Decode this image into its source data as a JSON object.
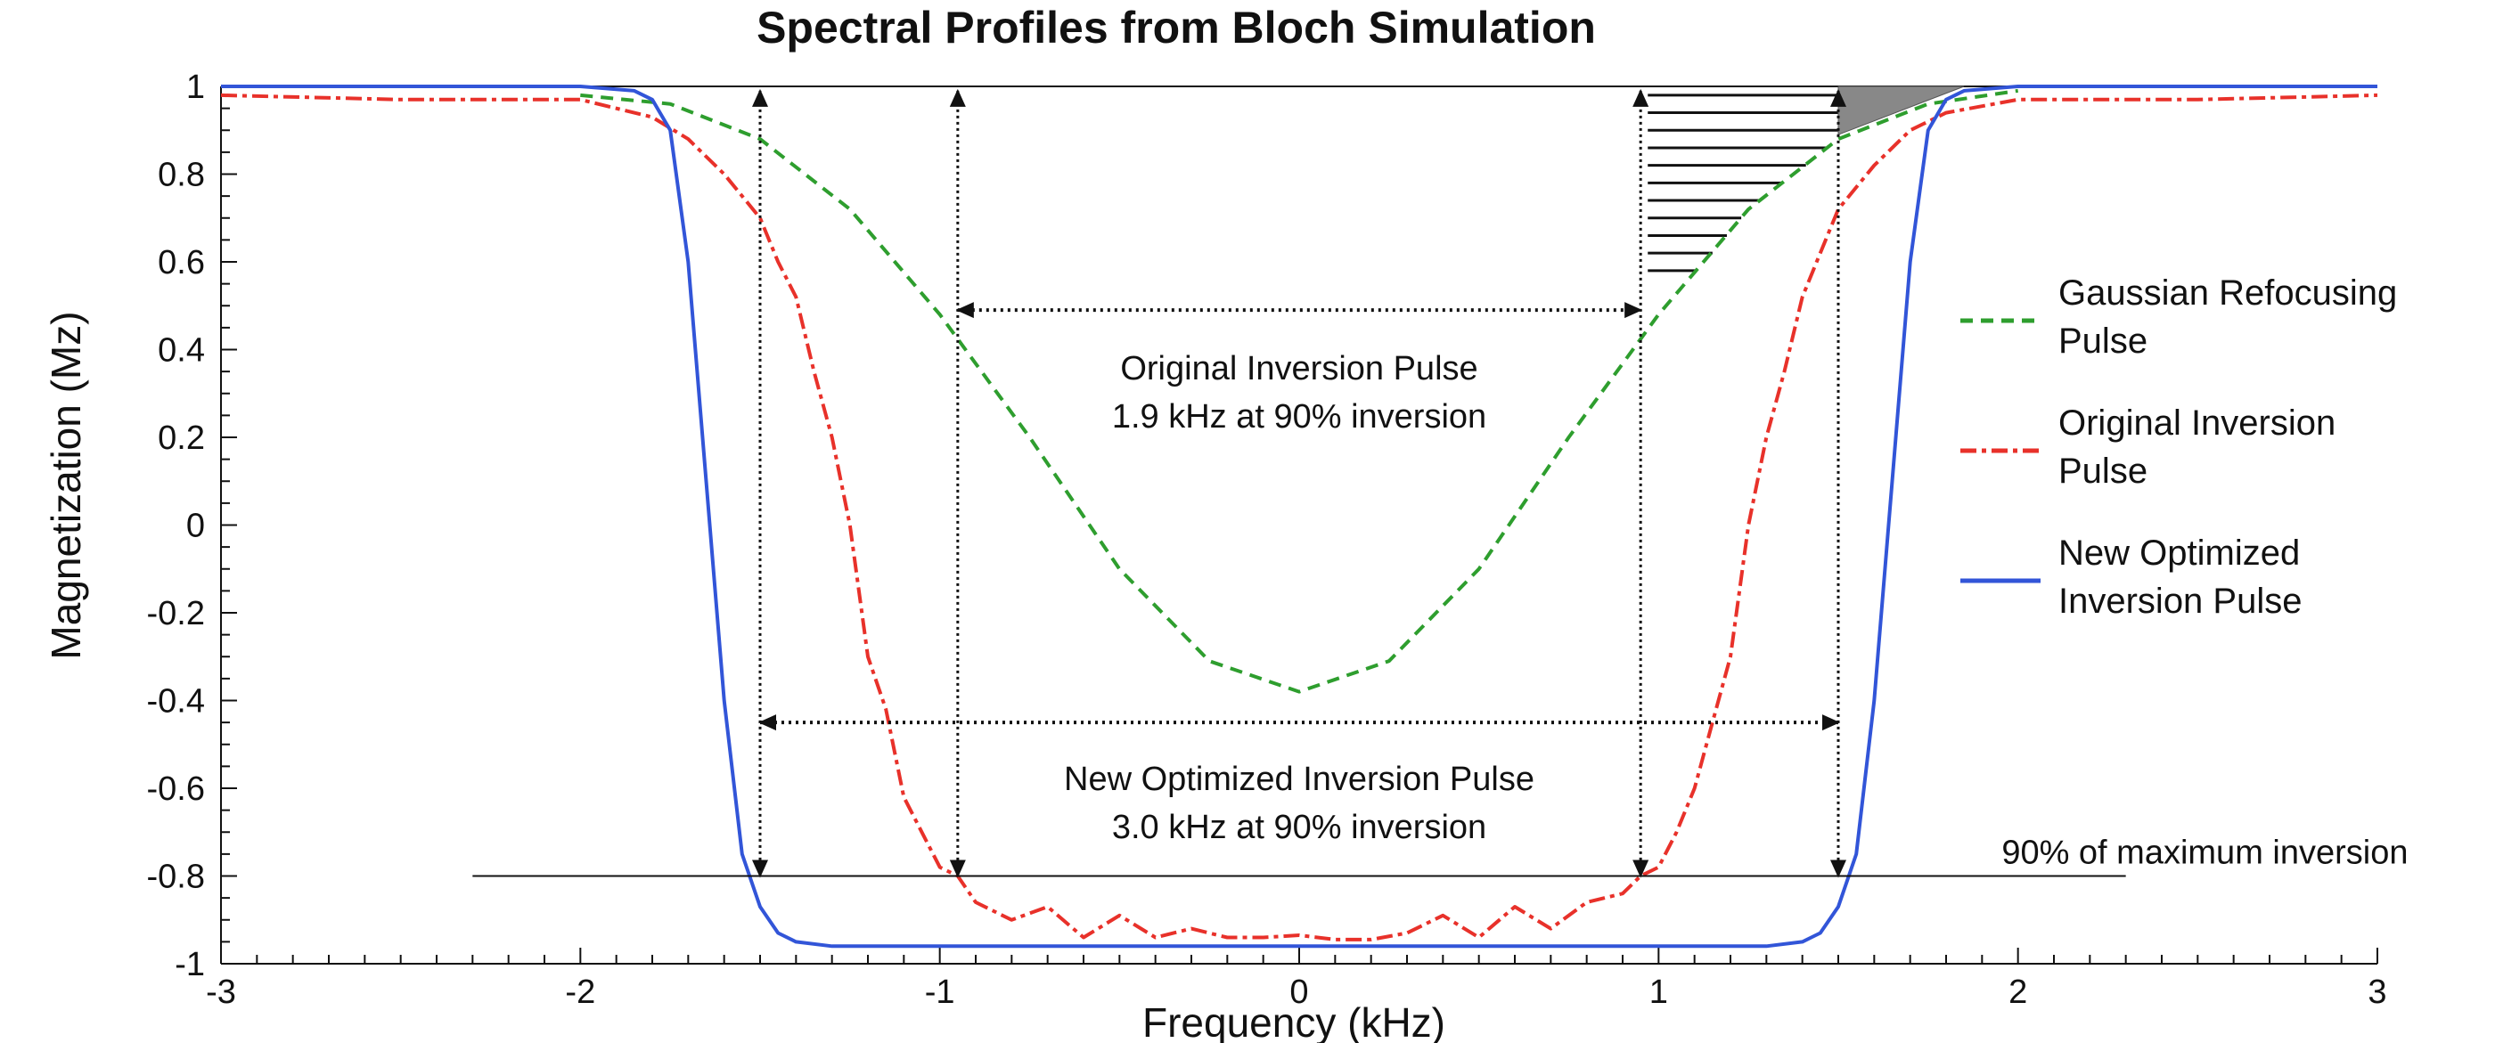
{
  "chart_data": {
    "type": "line",
    "title": "Spectral Profiles from Bloch Simulation",
    "xlabel": "Frequency (kHz)",
    "ylabel": "Magnetization (Mz)",
    "xlim": [
      -3,
      3
    ],
    "ylim": [
      -1,
      1
    ],
    "x_ticks": [
      -3,
      -2,
      -1,
      0,
      1,
      2,
      3
    ],
    "y_ticks": [
      1,
      0.8,
      0.6,
      0.4,
      0.2,
      0,
      -0.2,
      -0.4,
      -0.6,
      -0.8,
      -1
    ],
    "x_tick_labels": [
      "-3",
      "-2",
      "-1",
      "0",
      "1",
      "2",
      "3"
    ],
    "y_tick_labels": [
      "1",
      "0.8",
      "0.6",
      "0.4",
      "0.2",
      "0",
      "-0.2",
      "-0.4",
      "-0.6",
      "-0.8",
      "-1"
    ],
    "legend_position": "right",
    "series": [
      {
        "name": "Gaussian Refocusing Pulse",
        "legend_lines": [
          "Gaussian Refocusing",
          "Pulse"
        ],
        "color": "#2e9e2e",
        "style": "dashed",
        "x": [
          -2.0,
          -1.75,
          -1.5,
          -1.25,
          -1.0,
          -0.75,
          -0.5,
          -0.25,
          0.0,
          0.25,
          0.5,
          0.75,
          1.0,
          1.25,
          1.5,
          1.75,
          2.0
        ],
        "y": [
          0.98,
          0.96,
          0.88,
          0.72,
          0.48,
          0.2,
          -0.1,
          -0.31,
          -0.38,
          -0.31,
          -0.1,
          0.2,
          0.48,
          0.72,
          0.88,
          0.96,
          0.99
        ]
      },
      {
        "name": "Original Inversion Pulse",
        "legend_lines": [
          "Original Inversion",
          "Pulse"
        ],
        "color": "#e8312a",
        "style": "dashdot",
        "x": [
          -3.0,
          -2.5,
          -2.0,
          -1.8,
          -1.7,
          -1.6,
          -1.5,
          -1.45,
          -1.4,
          -1.35,
          -1.3,
          -1.25,
          -1.2,
          -1.15,
          -1.1,
          -1.05,
          -1.0,
          -0.95,
          -0.9,
          -0.8,
          -0.7,
          -0.6,
          -0.5,
          -0.4,
          -0.3,
          -0.2,
          -0.1,
          0.0,
          0.1,
          0.2,
          0.3,
          0.4,
          0.5,
          0.6,
          0.7,
          0.8,
          0.9,
          0.95,
          1.0,
          1.05,
          1.1,
          1.15,
          1.2,
          1.25,
          1.3,
          1.35,
          1.4,
          1.45,
          1.5,
          1.6,
          1.7,
          1.8,
          2.0,
          2.5,
          3.0
        ],
        "y": [
          0.98,
          0.97,
          0.97,
          0.93,
          0.88,
          0.8,
          0.7,
          0.6,
          0.52,
          0.35,
          0.2,
          0.0,
          -0.3,
          -0.42,
          -0.62,
          -0.7,
          -0.78,
          -0.8,
          -0.86,
          -0.9,
          -0.87,
          -0.94,
          -0.89,
          -0.94,
          -0.92,
          -0.94,
          -0.94,
          -0.935,
          -0.945,
          -0.945,
          -0.93,
          -0.89,
          -0.94,
          -0.87,
          -0.92,
          -0.86,
          -0.84,
          -0.8,
          -0.78,
          -0.7,
          -0.6,
          -0.45,
          -0.3,
          0.0,
          0.2,
          0.35,
          0.52,
          0.62,
          0.72,
          0.82,
          0.9,
          0.94,
          0.97,
          0.97,
          0.98
        ]
      },
      {
        "name": "New Optimized Inversion Pulse",
        "legend_lines": [
          "New Optimized",
          "Inversion Pulse"
        ],
        "color": "#3255d8",
        "style": "solid",
        "x": [
          -3.0,
          -2.0,
          -1.85,
          -1.8,
          -1.75,
          -1.7,
          -1.65,
          -1.6,
          -1.55,
          -1.5,
          -1.45,
          -1.4,
          -1.3,
          -1.0,
          0.0,
          1.0,
          1.3,
          1.4,
          1.45,
          1.5,
          1.55,
          1.6,
          1.65,
          1.7,
          1.75,
          1.8,
          1.85,
          2.0,
          3.0
        ],
        "y": [
          1.0,
          1.0,
          0.99,
          0.97,
          0.9,
          0.6,
          0.1,
          -0.4,
          -0.75,
          -0.87,
          -0.93,
          -0.95,
          -0.96,
          -0.96,
          -0.96,
          -0.96,
          -0.96,
          -0.95,
          -0.93,
          -0.87,
          -0.75,
          -0.4,
          0.1,
          0.6,
          0.9,
          0.97,
          0.99,
          1.0,
          1.0
        ]
      }
    ],
    "annotations": {
      "original": {
        "lines": [
          "Original Inversion Pulse",
          "1.9 kHz at 90% inversion"
        ],
        "x_from": -0.95,
        "x_to": 0.95,
        "y": 0.49
      },
      "optimized": {
        "lines": [
          "New Optimized Inversion Pulse",
          "3.0 kHz at 90% inversion"
        ],
        "x_from": -1.5,
        "x_to": 1.5,
        "y": -0.45
      },
      "threshold": {
        "label": "90% of maximum inversion",
        "y": -0.8,
        "x_from": -2.3,
        "x_to": 2.3
      }
    }
  }
}
